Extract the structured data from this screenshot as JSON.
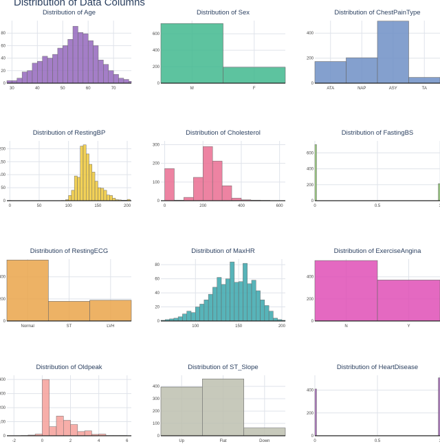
{
  "title": "Distribution of Data Columns",
  "colors": {
    "text": "#2a3f5f",
    "grid": "#dfe3ea",
    "tick": "#444444",
    "baseline": "#222222"
  },
  "chart_data": [
    {
      "type": "bar",
      "title": "Distribution of Age",
      "color": "#9467bd",
      "xrange": [
        28,
        77
      ],
      "ylim": [
        0,
        100
      ],
      "xticks": [
        30,
        40,
        50,
        60,
        70
      ],
      "yticks": [
        0,
        20,
        40,
        60,
        80
      ],
      "x": [
        29,
        31,
        33,
        35,
        37,
        39,
        41,
        43,
        45,
        47,
        49,
        51,
        53,
        55,
        57,
        59,
        61,
        63,
        65,
        67,
        69,
        71,
        73,
        75,
        77
      ],
      "values": [
        4,
        4,
        8,
        18,
        20,
        32,
        35,
        43,
        40,
        46,
        56,
        60,
        70,
        91,
        81,
        79,
        68,
        60,
        37,
        30,
        20,
        14,
        8,
        6,
        3
      ]
    },
    {
      "type": "bar",
      "title": "Distribution of Sex",
      "color": "#41b88e",
      "ylim": [
        0,
        760
      ],
      "categories": [
        "M",
        "F"
      ],
      "yticks": [
        0,
        200,
        400,
        600
      ],
      "values": [
        725,
        193
      ]
    },
    {
      "type": "bar",
      "title": "Distribution of ChestPainType",
      "color": "#6f8fc6",
      "ylim": [
        0,
        500
      ],
      "categories": [
        "ATA",
        "NAP",
        "ASY",
        "TA"
      ],
      "yticks": [
        0,
        200,
        400
      ],
      "values": [
        173,
        203,
        496,
        46
      ]
    },
    {
      "type": "bar",
      "title": "Distribution of RestingBP",
      "color": "#f0c93a",
      "xrange": [
        -5,
        207
      ],
      "ylim": [
        0,
        230
      ],
      "xticks": [
        0,
        50,
        100,
        150,
        200
      ],
      "yticks": [
        0,
        50,
        100,
        150,
        200
      ],
      "x": [
        0,
        90,
        97.5,
        102.5,
        107.5,
        112.5,
        117.5,
        122.5,
        127.5,
        132.5,
        137.5,
        142.5,
        147.5,
        152.5,
        157.5,
        162.5,
        167.5,
        172.5,
        177.5,
        182.5,
        187.5,
        192.5,
        197.5,
        202.5
      ],
      "values": [
        1,
        1,
        4,
        20,
        40,
        95,
        90,
        210,
        215,
        180,
        140,
        110,
        75,
        50,
        48,
        40,
        22,
        20,
        10,
        4,
        3,
        2,
        2,
        5
      ]
    },
    {
      "type": "bar",
      "title": "Distribution of Cholesterol",
      "color": "#ea6d92",
      "xrange": [
        -20,
        630
      ],
      "ylim": [
        0,
        320
      ],
      "xticks": [
        0,
        200,
        400,
        600
      ],
      "yticks": [
        0,
        100,
        200,
        300
      ],
      "x": [
        25,
        75,
        125,
        175,
        225,
        275,
        325,
        375,
        425,
        475,
        525,
        575
      ],
      "values": [
        172,
        3,
        18,
        125,
        290,
        212,
        80,
        14,
        5,
        3,
        2,
        1
      ]
    },
    {
      "type": "bar",
      "title": "Distribution of FastingBS",
      "color": "#8cc26e",
      "xrange": [
        0,
        1
      ],
      "ylim": [
        0,
        750
      ],
      "xticks": [
        0,
        0.5,
        1
      ],
      "yticks": [
        0,
        200,
        400,
        600
      ],
      "x": [
        0,
        1
      ],
      "values": [
        704,
        214
      ]
    },
    {
      "type": "bar",
      "title": "Distribution of RestingECG",
      "color": "#eaa44a",
      "ylim": [
        0,
        560
      ],
      "categories": [
        "Normal",
        "ST",
        "LVH"
      ],
      "yticks": [
        0,
        200,
        400
      ],
      "values": [
        552,
        178,
        188
      ]
    },
    {
      "type": "bar",
      "title": "Distribution of MaxHR",
      "color": "#3aa7ad",
      "xrange": [
        60,
        204
      ],
      "ylim": [
        0,
        88
      ],
      "xticks": [
        100,
        150,
        200
      ],
      "yticks": [
        0,
        20,
        40,
        60,
        80
      ],
      "x": [
        62.5,
        67.5,
        72.5,
        77.5,
        82.5,
        87.5,
        92.5,
        97.5,
        102.5,
        107.5,
        112.5,
        117.5,
        122.5,
        127.5,
        132.5,
        137.5,
        142.5,
        147.5,
        152.5,
        157.5,
        162.5,
        167.5,
        172.5,
        177.5,
        182.5,
        187.5,
        192.5,
        197.5,
        202.5
      ],
      "values": [
        1,
        2,
        3,
        4,
        6,
        10,
        14,
        12,
        20,
        24,
        30,
        38,
        48,
        62,
        52,
        60,
        84,
        55,
        56,
        82,
        53,
        58,
        43,
        30,
        22,
        14,
        4,
        2,
        1
      ]
    },
    {
      "type": "bar",
      "title": "Distribution of ExerciseAngina",
      "color": "#df4fb6",
      "ylim": [
        0,
        560
      ],
      "categories": [
        "N",
        "Y"
      ],
      "yticks": [
        0,
        200,
        400
      ],
      "values": [
        547,
        371
      ]
    },
    {
      "type": "bar",
      "title": "Distribution of Oldpeak",
      "color": "#f6a09a",
      "xrange": [
        -2.5,
        6.3
      ],
      "ylim": [
        0,
        430
      ],
      "xticks": [
        -2,
        0,
        2,
        4,
        6
      ],
      "yticks": [
        0,
        100,
        200,
        300,
        400
      ],
      "x": [
        -1.75,
        -1.25,
        -0.75,
        -0.25,
        0.25,
        0.75,
        1.25,
        1.75,
        2.25,
        2.75,
        3.25,
        3.75,
        4.25,
        4.75,
        5.25,
        5.75,
        6.25
      ],
      "values": [
        1,
        2,
        5,
        12,
        400,
        65,
        140,
        110,
        80,
        30,
        35,
        10,
        12,
        2,
        2,
        2,
        1
      ]
    },
    {
      "type": "bar",
      "title": "Distribution of ST_Slope",
      "color": "#bdc0af",
      "ylim": [
        0,
        490
      ],
      "categories": [
        "Up",
        "Flat",
        "Down"
      ],
      "yticks": [
        0,
        100,
        200,
        300,
        400
      ],
      "values": [
        395,
        460,
        63
      ]
    },
    {
      "type": "bar",
      "title": "Distribution of HeartDisease",
      "color": "#a065b2",
      "xrange": [
        0,
        1
      ],
      "ylim": [
        0,
        530
      ],
      "xticks": [
        0,
        0.5,
        1
      ],
      "yticks": [
        0,
        200,
        400
      ],
      "x": [
        0,
        1
      ],
      "values": [
        410,
        508
      ]
    }
  ]
}
